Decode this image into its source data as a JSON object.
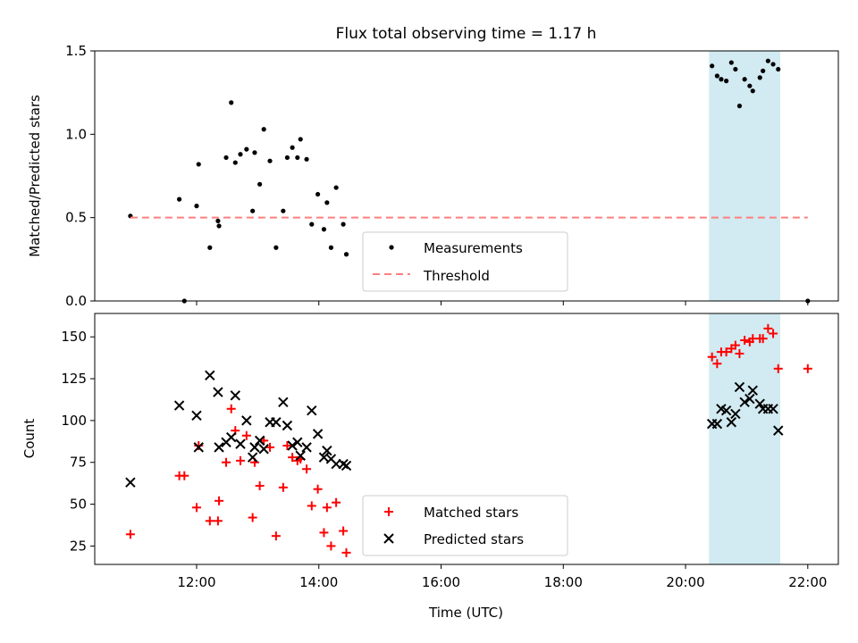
{
  "title": "Flux total observing time = 1.17 h",
  "colors": {
    "measurement": "#000000",
    "threshold": "#ff7f7f",
    "matched": "#ff0000",
    "predicted": "#000000",
    "highlight_band": "#add8e6"
  },
  "chart_data": [
    {
      "type": "scatter",
      "panel": "top",
      "ylabel": "Matched/Predicted stars",
      "xlabel": "",
      "xlim": [
        "10:20",
        "22:30"
      ],
      "ylim": [
        0,
        1.5
      ],
      "yticks": [
        0.0,
        0.5,
        1.0,
        1.5
      ],
      "ytick_labels": [
        "0.0",
        "0.5",
        "1.0",
        "1.5"
      ],
      "grid": false,
      "legend_position": "bottom-center",
      "highlight_band": [
        "20:23",
        "21:33"
      ],
      "threshold": {
        "name": "Threshold",
        "value": 0.5,
        "x_range": [
          "10:55",
          "22:00"
        ],
        "style": "dashed"
      },
      "series": [
        {
          "name": "Measurements",
          "marker": "dot",
          "points": [
            [
              "10:55",
              0.51
            ],
            [
              "11:43",
              0.61
            ],
            [
              "11:48",
              0.0
            ],
            [
              "12:00",
              0.57
            ],
            [
              "12:02",
              0.82
            ],
            [
              "12:13",
              0.32
            ],
            [
              "12:21",
              0.48
            ],
            [
              "12:22",
              0.45
            ],
            [
              "12:29",
              0.86
            ],
            [
              "12:34",
              1.19
            ],
            [
              "12:38",
              0.83
            ],
            [
              "12:43",
              0.88
            ],
            [
              "12:49",
              0.91
            ],
            [
              "12:55",
              0.54
            ],
            [
              "12:57",
              0.89
            ],
            [
              "13:02",
              0.7
            ],
            [
              "13:06",
              1.03
            ],
            [
              "13:12",
              0.84
            ],
            [
              "13:18",
              0.32
            ],
            [
              "13:25",
              0.54
            ],
            [
              "13:29",
              0.86
            ],
            [
              "13:34",
              0.92
            ],
            [
              "13:39",
              0.86
            ],
            [
              "13:42",
              0.97
            ],
            [
              "13:48",
              0.85
            ],
            [
              "13:53",
              0.46
            ],
            [
              "13:59",
              0.64
            ],
            [
              "14:05",
              0.43
            ],
            [
              "14:08",
              0.59
            ],
            [
              "14:12",
              0.32
            ],
            [
              "14:17",
              0.68
            ],
            [
              "14:24",
              0.46
            ],
            [
              "14:27",
              0.28
            ],
            [
              "20:26",
              1.41
            ],
            [
              "20:31",
              1.35
            ],
            [
              "20:35",
              1.33
            ],
            [
              "20:40",
              1.32
            ],
            [
              "20:45",
              1.43
            ],
            [
              "20:49",
              1.39
            ],
            [
              "20:53",
              1.17
            ],
            [
              "20:58",
              1.33
            ],
            [
              "21:03",
              1.29
            ],
            [
              "21:06",
              1.26
            ],
            [
              "21:13",
              1.34
            ],
            [
              "21:16",
              1.38
            ],
            [
              "21:21",
              1.44
            ],
            [
              "21:26",
              1.42
            ],
            [
              "21:31",
              1.39
            ],
            [
              "22:00",
              0.0
            ]
          ]
        }
      ]
    },
    {
      "type": "scatter",
      "panel": "bottom",
      "ylabel": "Count",
      "xlabel": "Time (UTC)",
      "xlim": [
        "10:20",
        "22:30"
      ],
      "ylim": [
        14,
        164
      ],
      "yticks": [
        25,
        50,
        75,
        100,
        125,
        150
      ],
      "ytick_labels": [
        "25",
        "50",
        "75",
        "100",
        "125",
        "150"
      ],
      "xticks": [
        "12:00",
        "14:00",
        "16:00",
        "18:00",
        "20:00",
        "22:00"
      ],
      "xtick_labels": [
        "12:00",
        "14:00",
        "16:00",
        "18:00",
        "20:00",
        "22:00"
      ],
      "grid": false,
      "legend_position": "bottom-center",
      "highlight_band": [
        "20:23",
        "21:33"
      ],
      "series": [
        {
          "name": "Matched stars",
          "marker": "plus",
          "points": [
            [
              "10:55",
              32
            ],
            [
              "11:43",
              67
            ],
            [
              "11:48",
              67
            ],
            [
              "12:00",
              48
            ],
            [
              "12:02",
              85
            ],
            [
              "12:13",
              40
            ],
            [
              "12:21",
              40
            ],
            [
              "12:22",
              52
            ],
            [
              "12:29",
              75
            ],
            [
              "12:34",
              107
            ],
            [
              "12:38",
              94
            ],
            [
              "12:43",
              76
            ],
            [
              "12:49",
              91
            ],
            [
              "12:55",
              42
            ],
            [
              "12:57",
              75
            ],
            [
              "13:02",
              61
            ],
            [
              "13:06",
              88
            ],
            [
              "13:12",
              84
            ],
            [
              "13:18",
              31
            ],
            [
              "13:25",
              60
            ],
            [
              "13:29",
              85
            ],
            [
              "13:34",
              78
            ],
            [
              "13:39",
              76
            ],
            [
              "13:42",
              77
            ],
            [
              "13:48",
              71
            ],
            [
              "13:53",
              49
            ],
            [
              "13:59",
              59
            ],
            [
              "14:05",
              33
            ],
            [
              "14:08",
              48
            ],
            [
              "14:12",
              25
            ],
            [
              "14:17",
              51
            ],
            [
              "14:24",
              34
            ],
            [
              "14:27",
              21
            ],
            [
              "20:26",
              138
            ],
            [
              "20:31",
              134
            ],
            [
              "20:35",
              141
            ],
            [
              "20:40",
              141
            ],
            [
              "20:45",
              143
            ],
            [
              "20:49",
              145
            ],
            [
              "20:53",
              140
            ],
            [
              "20:58",
              148
            ],
            [
              "21:03",
              147
            ],
            [
              "21:06",
              149
            ],
            [
              "21:13",
              149
            ],
            [
              "21:16",
              149
            ],
            [
              "21:21",
              155
            ],
            [
              "21:26",
              152
            ],
            [
              "21:31",
              131
            ],
            [
              "22:00",
              131
            ]
          ]
        },
        {
          "name": "Predicted stars",
          "marker": "x",
          "points": [
            [
              "10:55",
              63
            ],
            [
              "11:43",
              109
            ],
            [
              "12:00",
              103
            ],
            [
              "12:02",
              84
            ],
            [
              "12:13",
              127
            ],
            [
              "12:21",
              117
            ],
            [
              "12:22",
              84
            ],
            [
              "12:29",
              87
            ],
            [
              "12:34",
              90
            ],
            [
              "12:38",
              115
            ],
            [
              "12:43",
              86
            ],
            [
              "12:49",
              100
            ],
            [
              "12:55",
              78
            ],
            [
              "12:57",
              84
            ],
            [
              "13:02",
              88
            ],
            [
              "13:06",
              83
            ],
            [
              "13:12",
              99
            ],
            [
              "13:18",
              99
            ],
            [
              "13:25",
              111
            ],
            [
              "13:29",
              97
            ],
            [
              "13:34",
              85
            ],
            [
              "13:39",
              87
            ],
            [
              "13:42",
              79
            ],
            [
              "13:48",
              84
            ],
            [
              "13:53",
              106
            ],
            [
              "13:59",
              92
            ],
            [
              "14:05",
              78
            ],
            [
              "14:08",
              82
            ],
            [
              "14:12",
              77
            ],
            [
              "14:17",
              74
            ],
            [
              "14:24",
              74
            ],
            [
              "14:27",
              73
            ],
            [
              "20:26",
              98
            ],
            [
              "20:31",
              98
            ],
            [
              "20:35",
              107
            ],
            [
              "20:40",
              106
            ],
            [
              "20:45",
              99
            ],
            [
              "20:49",
              104
            ],
            [
              "20:53",
              120
            ],
            [
              "20:58",
              111
            ],
            [
              "21:03",
              113
            ],
            [
              "21:06",
              118
            ],
            [
              "21:13",
              110
            ],
            [
              "21:16",
              107
            ],
            [
              "21:21",
              107
            ],
            [
              "21:26",
              107
            ],
            [
              "21:31",
              94
            ]
          ]
        }
      ]
    }
  ]
}
